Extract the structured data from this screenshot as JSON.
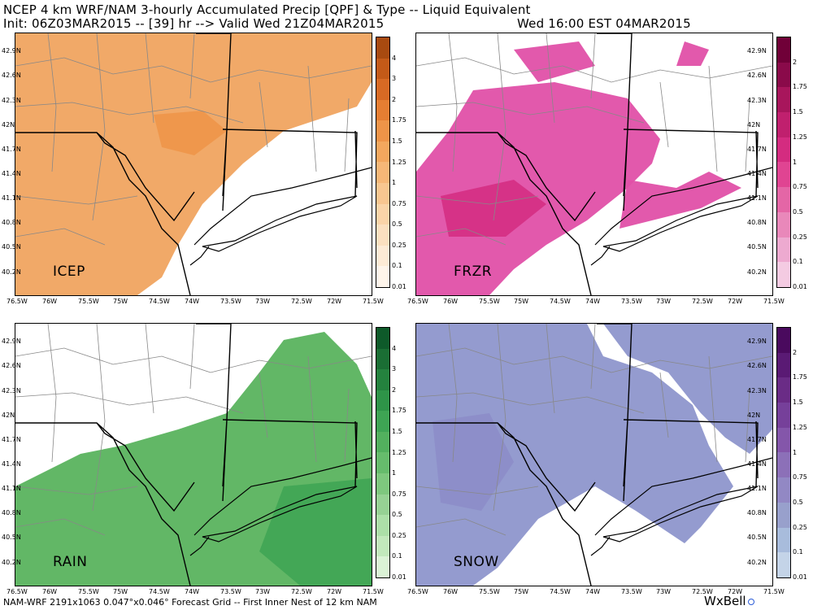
{
  "header": {
    "line1": "NCEP 4 km WRF/NAM 3-hourly Accumulated Precip [QPF] & Type -- Liquid Equivalent",
    "line2": "Init: 06Z03MAR2015 -- [39] hr --> Valid Wed 21Z04MAR2015",
    "valid_local": "Wed 16:00 EST 04MAR2015"
  },
  "lat_labels": [
    "42.9N",
    "42.6N",
    "42.3N",
    "42N",
    "41.7N",
    "41.4N",
    "41.1N",
    "40.8N",
    "40.5N",
    "40.2N"
  ],
  "lon_labels": [
    "76.5W",
    "76W",
    "75.5W",
    "75W",
    "74.5W",
    "74W",
    "73.5W",
    "73W",
    "72.5W",
    "72W",
    "71.5W"
  ],
  "panels": [
    {
      "id": "icep",
      "label": "ICEP",
      "color": "#f0a460",
      "ticks": [
        "4",
        "3",
        "2",
        "1.75",
        "1.5",
        "1.25",
        "1",
        "0.75",
        "0.5",
        "0.25",
        "0.1",
        "0.01"
      ],
      "scale": [
        "#a84a10",
        "#c45a18",
        "#d86a24",
        "#e67e32",
        "#ee9448",
        "#f3a75e",
        "#f6b777",
        "#f8c690",
        "#fad4a8",
        "#fbe0c0",
        "#fdebd6",
        "#fef5eb"
      ]
    },
    {
      "id": "frzr",
      "label": "FRZR",
      "color": "#e050a8",
      "ticks": [
        "2",
        "1.75",
        "1.5",
        "1.25",
        "1",
        "0.75",
        "0.5",
        "0.25",
        "0.1",
        "0.01"
      ],
      "scale": [
        "#700038",
        "#8a0a4a",
        "#a8165c",
        "#c0206e",
        "#d42c80",
        "#e04492",
        "#e466a6",
        "#e988ba",
        "#edaad0",
        "#f4cbe2"
      ]
    },
    {
      "id": "rain",
      "label": "RAIN",
      "color": "#5ab35e",
      "ticks": [
        "4",
        "3",
        "2",
        "1.75",
        "1.5",
        "1.25",
        "1",
        "0.75",
        "0.5",
        "0.25",
        "0.1",
        "0.01"
      ],
      "scale": [
        "#0e5a2a",
        "#1a6e34",
        "#24823e",
        "#2e9448",
        "#3ea454",
        "#52b05e",
        "#66bc6c",
        "#7ec87e",
        "#96d294",
        "#ace0a8",
        "#c2e9bc",
        "#dbf3d6"
      ]
    },
    {
      "id": "snow",
      "label": "SNOW",
      "color": "#8e96cc",
      "ticks": [
        "2",
        "1.75",
        "1.5",
        "1.25",
        "1",
        "0.75",
        "0.5",
        "0.25",
        "0.1",
        "0.01"
      ],
      "scale": [
        "#4a0a5e",
        "#5a1a74",
        "#6a2c86",
        "#76409a",
        "#8456aa",
        "#8c70b8",
        "#9288c4",
        "#98a0cc",
        "#a8bcdc",
        "#c4d4e8"
      ]
    }
  ],
  "footer": "NAM-WRF 2191x1063 0.047°x0.046° Forecast Grid -- First Inner Nest of 12 km NAM",
  "brand": "WxBell"
}
